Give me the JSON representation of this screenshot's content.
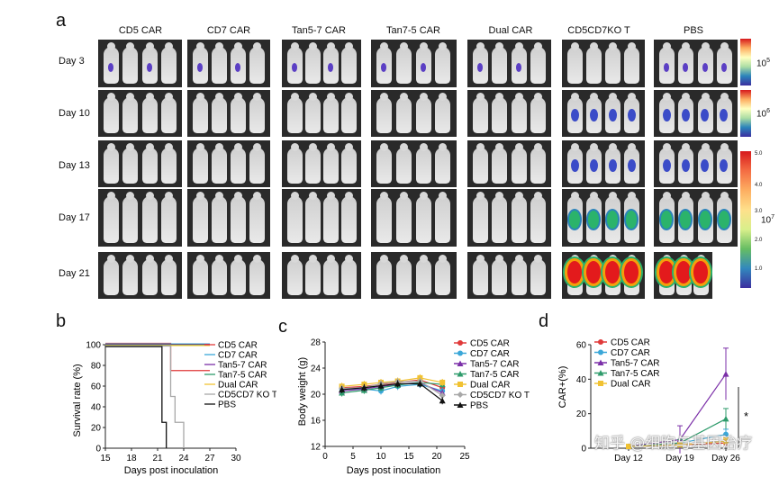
{
  "panels": {
    "a": "a",
    "b": "b",
    "c": "c",
    "d": "d"
  },
  "panel_a": {
    "columns": [
      "CD5 CAR",
      "CD7 CAR",
      "Tan5-7 CAR",
      "Tan7-5 CAR",
      "Dual CAR",
      "CD5CD7KO T",
      "PBS"
    ],
    "rows": [
      "Day 3",
      "Day 10",
      "Day 13",
      "Day 17",
      "Day 21"
    ],
    "scalebars": [
      {
        "label": "10",
        "exp": "5",
        "ticks": [
          "",
          "",
          ""
        ]
      },
      {
        "label": "10",
        "exp": "6",
        "ticks": [
          "",
          "",
          ""
        ]
      },
      {
        "label": "10",
        "exp": "7",
        "ticks": [
          "5.0",
          "4.0",
          "3.0",
          "2.0",
          "1.0"
        ]
      }
    ]
  },
  "chart_data": [
    {
      "type": "line",
      "panel": "b",
      "xlabel": "Days post inoculation",
      "ylabel": "Survival rate (%)",
      "xlim": [
        15,
        30
      ],
      "ylim": [
        0,
        100
      ],
      "xticks": [
        "15",
        "18",
        "21",
        "24",
        "27",
        "30"
      ],
      "yticks": [
        "0",
        "20",
        "40",
        "60",
        "80",
        "100"
      ],
      "legend_position": "right",
      "series": [
        {
          "name": "CD5 CAR",
          "color": "#e03a3a",
          "x": [
            15,
            21,
            22.5,
            22.5,
            27
          ],
          "y": [
            100,
            100,
            100,
            75,
            75
          ]
        },
        {
          "name": "CD7 CAR",
          "color": "#3aa7d8",
          "x": [
            15,
            27
          ],
          "y": [
            100,
            100
          ]
        },
        {
          "name": "Tan5-7 CAR",
          "color": "#7b2fa8",
          "x": [
            15,
            27
          ],
          "y": [
            100,
            100
          ]
        },
        {
          "name": "Tan7-5 CAR",
          "color": "#2e9b6b",
          "x": [
            15,
            27
          ],
          "y": [
            100,
            100
          ]
        },
        {
          "name": "Dual CAR",
          "color": "#f1c232",
          "x": [
            15,
            27
          ],
          "y": [
            100,
            100
          ]
        },
        {
          "name": "CD5CD7 KO T",
          "color": "#a8a8a8",
          "x": [
            15,
            22.5,
            22.5,
            23,
            23,
            24,
            24
          ],
          "y": [
            100,
            100,
            50,
            50,
            25,
            25,
            0
          ]
        },
        {
          "name": "PBS",
          "color": "#111111",
          "x": [
            15,
            21.5,
            21.5,
            22,
            22
          ],
          "y": [
            100,
            100,
            25,
            25,
            0
          ]
        }
      ]
    },
    {
      "type": "line",
      "panel": "c",
      "xlabel": "Days post inoculation",
      "ylabel": "Body weight (g)",
      "xlim": [
        0,
        25
      ],
      "ylim": [
        12,
        28
      ],
      "xticks": [
        "0",
        "5",
        "10",
        "15",
        "20",
        "25"
      ],
      "yticks": [
        "12",
        "16",
        "20",
        "24",
        "28"
      ],
      "x": [
        3,
        7,
        10,
        13,
        17,
        21
      ],
      "legend_position": "right",
      "series": [
        {
          "name": "CD5 CAR",
          "color": "#e03a3a",
          "values": [
            21.0,
            21.2,
            21.5,
            21.8,
            22.2,
            21.0
          ]
        },
        {
          "name": "CD7 CAR",
          "color": "#3aa7d8",
          "values": [
            20.8,
            20.8,
            20.5,
            21.2,
            21.5,
            20.5
          ]
        },
        {
          "name": "Tan5-7 CAR",
          "color": "#7b2fa8",
          "values": [
            20.5,
            20.8,
            21.2,
            21.5,
            21.8,
            20.2
          ]
        },
        {
          "name": "Tan7-5 CAR",
          "color": "#2e9b6b",
          "values": [
            20.2,
            20.6,
            21.0,
            21.4,
            21.8,
            21.5
          ]
        },
        {
          "name": "Dual CAR",
          "color": "#f1c232",
          "values": [
            21.2,
            21.5,
            21.8,
            22.0,
            22.5,
            21.8
          ]
        },
        {
          "name": "CD5CD7 KO T",
          "color": "#a8a8a8",
          "values": [
            20.9,
            21.0,
            21.6,
            21.9,
            22.0,
            19.8
          ]
        },
        {
          "name": "PBS",
          "color": "#111111",
          "values": [
            20.7,
            21.0,
            21.3,
            21.6,
            21.6,
            19.0
          ]
        }
      ]
    },
    {
      "type": "line",
      "panel": "d",
      "xlabel": "",
      "ylabel": "CAR+(%)",
      "categories": [
        "Day 12",
        "Day 19",
        "Day 26"
      ],
      "ylim": [
        0,
        60
      ],
      "yticks": [
        "0",
        "20",
        "40",
        "60"
      ],
      "legend_position": "top-left",
      "annotation": "*",
      "series": [
        {
          "name": "CD5 CAR",
          "color": "#e03a3a",
          "values": [
            1,
            2,
            3
          ],
          "errors": [
            0.5,
            1,
            1
          ]
        },
        {
          "name": "CD7 CAR",
          "color": "#3aa7d8",
          "values": [
            1,
            3,
            8
          ],
          "errors": [
            0.5,
            2,
            3
          ]
        },
        {
          "name": "Tan5-7 CAR",
          "color": "#7b2fa8",
          "values": [
            1,
            5,
            43
          ],
          "errors": [
            0.5,
            8,
            15
          ]
        },
        {
          "name": "Tan7-5 CAR",
          "color": "#2e9b6b",
          "values": [
            1,
            3,
            17
          ],
          "errors": [
            0.5,
            2,
            6
          ]
        },
        {
          "name": "Dual CAR",
          "color": "#f1c232",
          "values": [
            1,
            2,
            4
          ],
          "errors": [
            0.5,
            1,
            2
          ]
        }
      ]
    }
  ],
  "watermark": "知乎 @细胞与基因治疗"
}
